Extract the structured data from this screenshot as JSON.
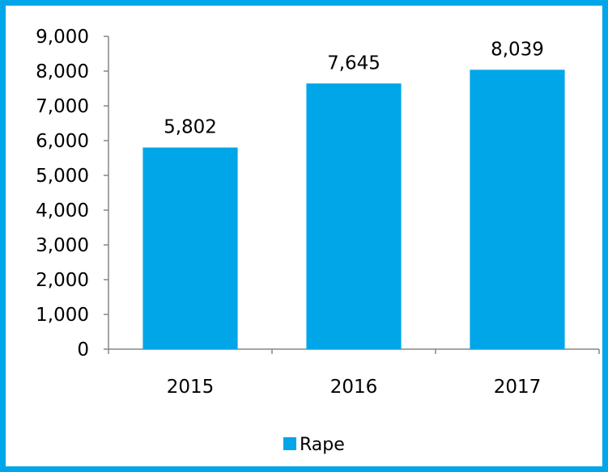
{
  "chart_data": {
    "type": "bar",
    "categories": [
      "2015",
      "2016",
      "2017"
    ],
    "series": [
      {
        "name": "Rape",
        "values": [
          5802,
          7645,
          8039
        ]
      }
    ],
    "data_labels": [
      "5,802",
      "7,645",
      "8,039"
    ],
    "y_ticks": [
      0,
      1000,
      2000,
      3000,
      4000,
      5000,
      6000,
      7000,
      8000,
      9000
    ],
    "y_tick_labels": [
      "0",
      "1,000",
      "2,000",
      "3,000",
      "4,000",
      "5,000",
      "6,000",
      "7,000",
      "8,000",
      "9,000"
    ],
    "ylim": [
      0,
      9000
    ],
    "grid": false,
    "legend_position": "bottom",
    "title": "",
    "xlabel": "",
    "ylabel": ""
  },
  "colors": {
    "bar": "#00a6e8",
    "frame": "#00a6e8",
    "axis": "#868686"
  },
  "legend": {
    "label": "Rape"
  }
}
